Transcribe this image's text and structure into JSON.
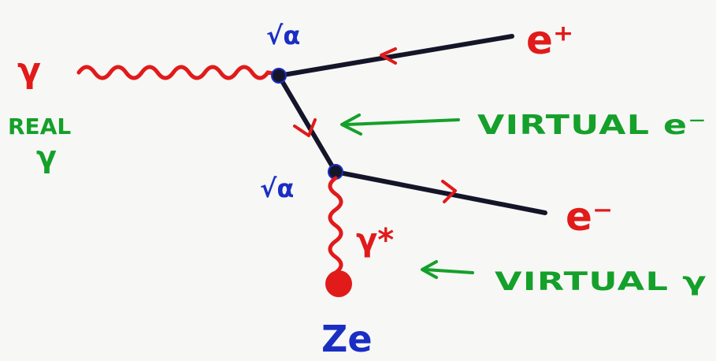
{
  "colors": {
    "background": "#f7f7f5",
    "photon": "#e11a1a",
    "fermion_line": "#15152a",
    "vertex": "#1a2ec4",
    "annotation": "#14a02a",
    "particle_label": "#e11a1a",
    "coupling_label": "#1a2ec4"
  },
  "labels": {
    "incoming_photon": "γ",
    "real": "REAL",
    "real_gamma": "γ",
    "coupling_top": "√α",
    "coupling_bottom": "√α",
    "positron": "e⁺",
    "electron": "e⁻",
    "virtual_electron": "VIRTUAL e⁻",
    "virtual_photon_symbol": "γ*",
    "virtual_photon": "VIRTUAL γ",
    "nucleus_charge": "Ze"
  },
  "icons": {
    "vertex": "dot-icon",
    "nucleus": "filled-circle-icon",
    "arrow": "arrow-left-icon"
  }
}
